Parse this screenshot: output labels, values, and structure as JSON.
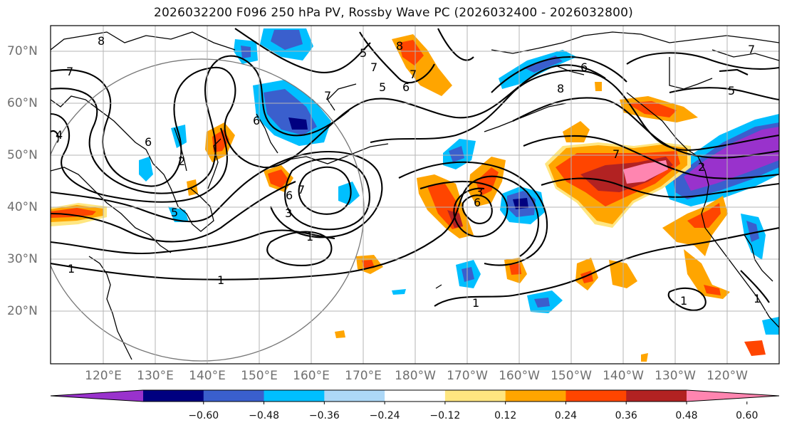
{
  "title": "2026032200 F096 250 hPa PV, Rossby Wave PC (2026032400 - 2026032800)",
  "lat_labels": [
    "70°N",
    "60°N",
    "50°N",
    "40°N",
    "30°N",
    "20°N"
  ],
  "lon_labels": [
    "120°E",
    "130°E",
    "140°E",
    "150°E",
    "160°E",
    "170°E",
    "180°W",
    "170°W",
    "160°W",
    "150°W",
    "140°W",
    "130°W",
    "120°W"
  ],
  "colorbar": {
    "ticks": [
      "−0.60",
      "−0.48",
      "−0.36",
      "−0.24",
      "−0.12",
      "0.12",
      "0.24",
      "0.36",
      "0.48",
      "0.60"
    ],
    "colors": [
      "#9932cc",
      "#000080",
      "#3a5fcd",
      "#00bfff",
      "#add8f7",
      "#ffffff",
      "#ffe680",
      "#ffa500",
      "#ff4500",
      "#b22222",
      "#ff85b0"
    ]
  },
  "contour_labels": [
    "8",
    "7",
    "7",
    "5",
    "6",
    "5",
    "6",
    "7",
    "8",
    "6",
    "6",
    "7",
    "8",
    "5",
    "4",
    "6",
    "3",
    "2",
    "7",
    "6",
    "3",
    "1",
    "1",
    "1",
    "1",
    "1",
    "5",
    "2",
    "7",
    "7",
    "1"
  ]
}
